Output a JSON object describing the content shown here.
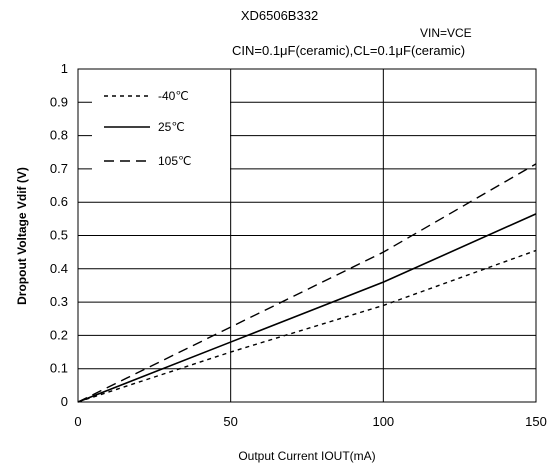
{
  "chart_data": {
    "type": "line",
    "title": "XD6506B332",
    "conditions": {
      "vin": "VIN=VCE",
      "caps": "CIN=0.1μF(ceramic),CL=0.1μF(ceramic)"
    },
    "xlabel": "Output Current IOUT(mA)",
    "ylabel": "Dropout Voltage  Vdif (V)",
    "xlim": [
      0,
      150
    ],
    "ylim": [
      0,
      1
    ],
    "x_ticks": [
      "0",
      "50",
      "100",
      "150"
    ],
    "y_ticks": [
      "0",
      "0.1",
      "0.2",
      "0.3",
      "0.4",
      "0.5",
      "0.6",
      "0.7",
      "0.8",
      "0.9",
      "1"
    ],
    "grid": true,
    "legend_position": "top-left",
    "series": [
      {
        "name": "-40℃",
        "style": "short-dash",
        "color": "#000000",
        "x": [
          0,
          50,
          100,
          150
        ],
        "y": [
          0,
          0.15,
          0.29,
          0.455
        ]
      },
      {
        "name": "25℃",
        "style": "solid",
        "color": "#000000",
        "x": [
          0,
          50,
          100,
          150
        ],
        "y": [
          0,
          0.18,
          0.36,
          0.565
        ]
      },
      {
        "name": "105℃",
        "style": "long-dash",
        "color": "#000000",
        "x": [
          0,
          50,
          100,
          150
        ],
        "y": [
          0,
          0.225,
          0.45,
          0.715
        ]
      }
    ]
  }
}
